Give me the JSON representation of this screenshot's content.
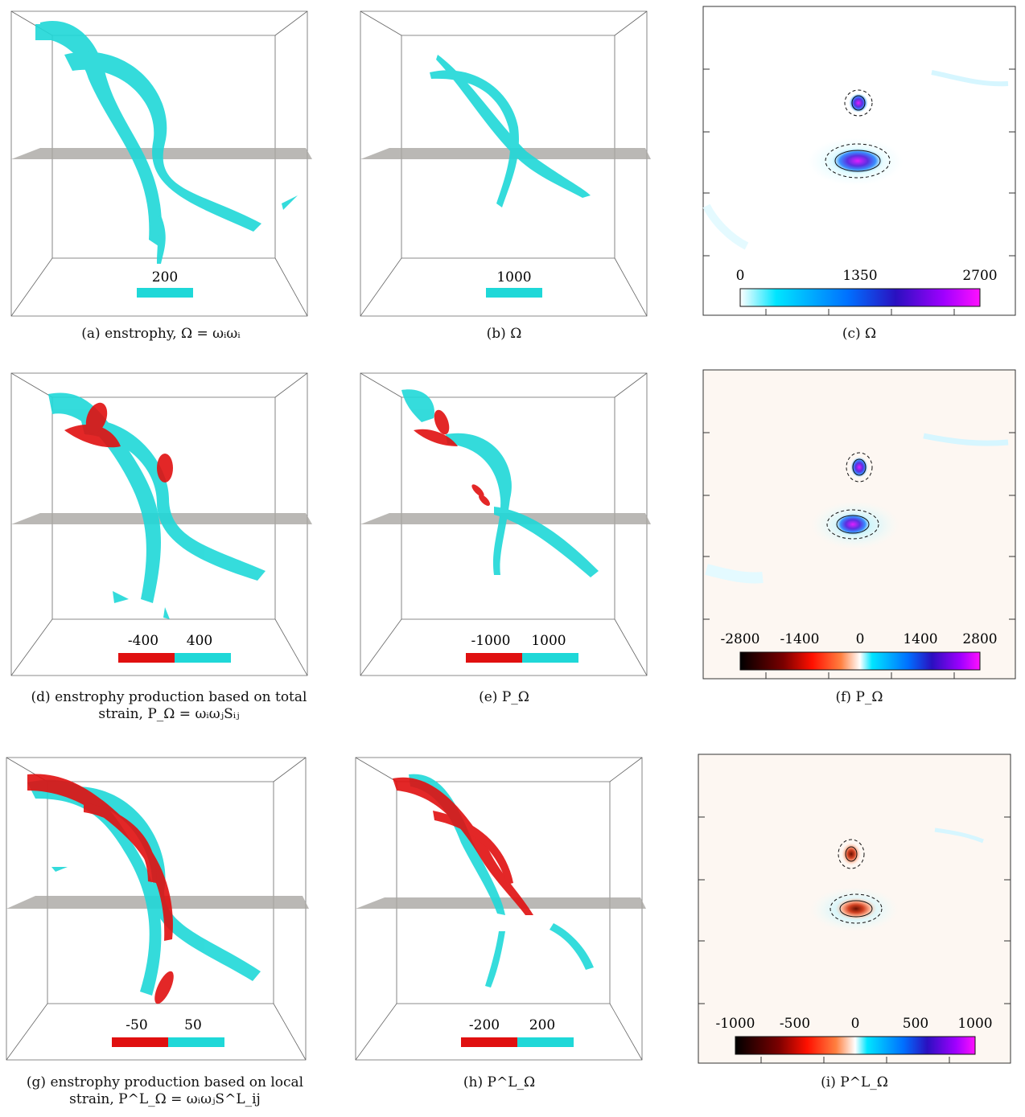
{
  "colors": {
    "vortex": "#1fd8d8",
    "negative": "#e01010",
    "plane": "#a9a6a3",
    "panel_bg_pos": "#fdf7f2"
  },
  "panels": {
    "a": {
      "label": "(a)",
      "caption": "enstrophy, Ω = ωᵢωᵢ",
      "scale_labels": [
        "200"
      ]
    },
    "b": {
      "label": "(b)",
      "caption": "Ω",
      "scale_labels": [
        "1000"
      ]
    },
    "c": {
      "label": "(c)",
      "caption": "Ω",
      "colorbar_ticks": [
        "0",
        "1350",
        "2700"
      ]
    },
    "d": {
      "label": "(d)",
      "caption_line1": "enstrophy production based on total",
      "caption_line2": "strain, P_Ω = ωᵢωⱼSᵢⱼ",
      "scale_labels": [
        "-400",
        "400"
      ]
    },
    "e": {
      "label": "(e)",
      "caption": "P_Ω",
      "scale_labels": [
        "-1000",
        "1000"
      ]
    },
    "f": {
      "label": "(f)",
      "caption": "P_Ω",
      "colorbar_ticks": [
        "-2800",
        "-1400",
        "0",
        "1400",
        "2800"
      ]
    },
    "g": {
      "label": "(g)",
      "caption_line1": "enstrophy production based on local",
      "caption_line2": "strain, P^L_Ω = ωᵢωⱼS^L_ij",
      "scale_labels": [
        "-50",
        "50"
      ]
    },
    "h": {
      "label": "(h)",
      "caption": "P^L_Ω",
      "scale_labels": [
        "-200",
        "200"
      ]
    },
    "i": {
      "label": "(i)",
      "caption": "P^L_Ω",
      "colorbar_ticks": [
        "-1000",
        "-500",
        "0",
        "500",
        "1000"
      ]
    }
  }
}
